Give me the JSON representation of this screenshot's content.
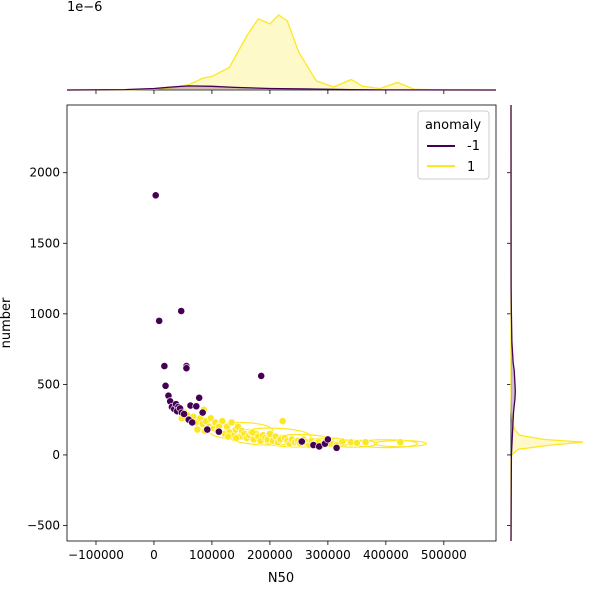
{
  "chart_data": {
    "type": "scatter",
    "xlabel": "N50",
    "ylabel": "number",
    "xlim": [
      -150000,
      590000
    ],
    "ylim": [
      -610,
      2480
    ],
    "x_ticks": [
      -100000,
      0,
      100000,
      200000,
      300000,
      400000,
      500000
    ],
    "x_tick_labels": [
      "−100000",
      "0",
      "100000",
      "200000",
      "300000",
      "400000",
      "500000"
    ],
    "y_ticks": [
      -500,
      0,
      500,
      1000,
      1500,
      2000
    ],
    "y_tick_labels": [
      "−500",
      "0",
      "500",
      "1000",
      "1500",
      "2000"
    ],
    "top_marginal_scale_label": "1e−6",
    "legend": {
      "title": "anomaly",
      "placement": "top-right",
      "entries": [
        {
          "label": "-1",
          "color": "#440154"
        },
        {
          "label": "1",
          "color": "#fde725"
        }
      ]
    },
    "series": [
      {
        "name": "-1",
        "color": "#440154",
        "points": [
          [
            3000,
            1840
          ],
          [
            9000,
            950
          ],
          [
            47000,
            1020
          ],
          [
            18000,
            630
          ],
          [
            56000,
            630
          ],
          [
            56000,
            615
          ],
          [
            20000,
            490
          ],
          [
            25000,
            420
          ],
          [
            28000,
            380
          ],
          [
            31000,
            340
          ],
          [
            35000,
            325
          ],
          [
            38000,
            360
          ],
          [
            42000,
            340
          ],
          [
            40000,
            310
          ],
          [
            45000,
            330
          ],
          [
            48000,
            300
          ],
          [
            52000,
            290
          ],
          [
            60000,
            250
          ],
          [
            63000,
            350
          ],
          [
            66000,
            230
          ],
          [
            73000,
            345
          ],
          [
            78000,
            405
          ],
          [
            84000,
            300
          ],
          [
            92000,
            180
          ],
          [
            112000,
            165
          ],
          [
            185000,
            560
          ],
          [
            255000,
            95
          ],
          [
            275000,
            70
          ],
          [
            285000,
            60
          ],
          [
            295000,
            80
          ],
          [
            300000,
            110
          ],
          [
            315000,
            50
          ]
        ]
      },
      {
        "name": "1",
        "color": "#fde725",
        "points": [
          [
            48000,
            260
          ],
          [
            53000,
            300
          ],
          [
            58000,
            280
          ],
          [
            62000,
            250
          ],
          [
            68000,
            270
          ],
          [
            72000,
            230
          ],
          [
            75000,
            180
          ],
          [
            80000,
            260
          ],
          [
            84000,
            220
          ],
          [
            86000,
            320
          ],
          [
            90000,
            240
          ],
          [
            95000,
            200
          ],
          [
            98000,
            260
          ],
          [
            103000,
            190
          ],
          [
            106000,
            230
          ],
          [
            110000,
            170
          ],
          [
            114000,
            210
          ],
          [
            118000,
            240
          ],
          [
            122000,
            150
          ],
          [
            126000,
            200
          ],
          [
            130000,
            160
          ],
          [
            134000,
            230
          ],
          [
            138000,
            140
          ],
          [
            141000,
            180
          ],
          [
            145000,
            200
          ],
          [
            148000,
            130
          ],
          [
            152000,
            170
          ],
          [
            156000,
            150
          ],
          [
            160000,
            120
          ],
          [
            164000,
            140
          ],
          [
            168000,
            160
          ],
          [
            172000,
            110
          ],
          [
            176000,
            150
          ],
          [
            180000,
            130
          ],
          [
            184000,
            100
          ],
          [
            188000,
            140
          ],
          [
            192000,
            120
          ],
          [
            196000,
            110
          ],
          [
            200000,
            150
          ],
          [
            205000,
            100
          ],
          [
            210000,
            130
          ],
          [
            214000,
            90
          ],
          [
            218000,
            110
          ],
          [
            222000,
            240
          ],
          [
            226000,
            120
          ],
          [
            230000,
            100
          ],
          [
            234000,
            80
          ],
          [
            238000,
            110
          ],
          [
            243000,
            90
          ],
          [
            248000,
            100
          ],
          [
            252000,
            80
          ],
          [
            258000,
            110
          ],
          [
            262000,
            90
          ],
          [
            268000,
            70
          ],
          [
            272000,
            100
          ],
          [
            278000,
            80
          ],
          [
            284000,
            90
          ],
          [
            290000,
            70
          ],
          [
            296000,
            90
          ],
          [
            305000,
            80
          ],
          [
            315000,
            70
          ],
          [
            325000,
            95
          ],
          [
            340000,
            90
          ],
          [
            350000,
            85
          ],
          [
            365000,
            90
          ],
          [
            425000,
            90
          ],
          [
            170000,
            160
          ],
          [
            142000,
            120
          ],
          [
            112000,
            200
          ],
          [
            88000,
            170
          ],
          [
            128000,
            130
          ]
        ]
      }
    ],
    "contours": [
      {
        "series": "1",
        "color": "#fde725",
        "ellipses": [
          [
            345000,
            80,
            40000,
            25
          ],
          [
            400000,
            80,
            55000,
            28
          ],
          [
            425000,
            80,
            45000,
            22
          ],
          [
            300000,
            90,
            40000,
            30
          ],
          [
            250000,
            100,
            60000,
            45
          ],
          [
            200000,
            130,
            70000,
            60
          ],
          [
            150000,
            170,
            55000,
            60
          ]
        ]
      }
    ],
    "marginal_x": {
      "series": [
        {
          "name": "1",
          "color": "#fde725",
          "x": [
            -150000,
            -50000,
            0,
            30000,
            60000,
            85000,
            100000,
            130000,
            160000,
            180000,
            200000,
            215000,
            230000,
            250000,
            280000,
            310000,
            340000,
            360000,
            390000,
            420000,
            450000,
            500000,
            590000
          ],
          "density": [
            0,
            0.002,
            0.01,
            0.03,
            0.07,
            0.16,
            0.18,
            0.3,
            0.72,
            0.95,
            0.88,
            1.0,
            0.92,
            0.5,
            0.12,
            0.04,
            0.14,
            0.05,
            0.02,
            0.1,
            0.01,
            0,
            0
          ]
        },
        {
          "name": "-1",
          "color": "#440154",
          "x": [
            -150000,
            -50000,
            0,
            30000,
            60000,
            100000,
            140000,
            200000,
            260000,
            300000,
            340000,
            400000,
            590000
          ],
          "density": [
            0,
            0.005,
            0.02,
            0.04,
            0.055,
            0.05,
            0.035,
            0.02,
            0.015,
            0.01,
            0.004,
            0.001,
            0
          ]
        }
      ]
    },
    "marginal_y": {
      "series": [
        {
          "name": "1",
          "color": "#fde725",
          "y": [
            -610,
            -40,
            0,
            40,
            70,
            90,
            110,
            140,
            180,
            230,
            300,
            500,
            2480
          ],
          "density": [
            0,
            0,
            0.01,
            0.1,
            0.55,
            1.0,
            0.45,
            0.12,
            0.05,
            0.02,
            0.005,
            0,
            0
          ]
        },
        {
          "name": "-1",
          "color": "#440154",
          "y": [
            -610,
            0,
            100,
            200,
            300,
            350,
            400,
            450,
            500,
            550,
            600,
            650,
            800,
            1000,
            1200,
            2480
          ],
          "density": [
            0,
            0.005,
            0.015,
            0.025,
            0.035,
            0.045,
            0.055,
            0.06,
            0.055,
            0.05,
            0.045,
            0.03,
            0.012,
            0.005,
            0.002,
            0
          ]
        }
      ]
    }
  }
}
